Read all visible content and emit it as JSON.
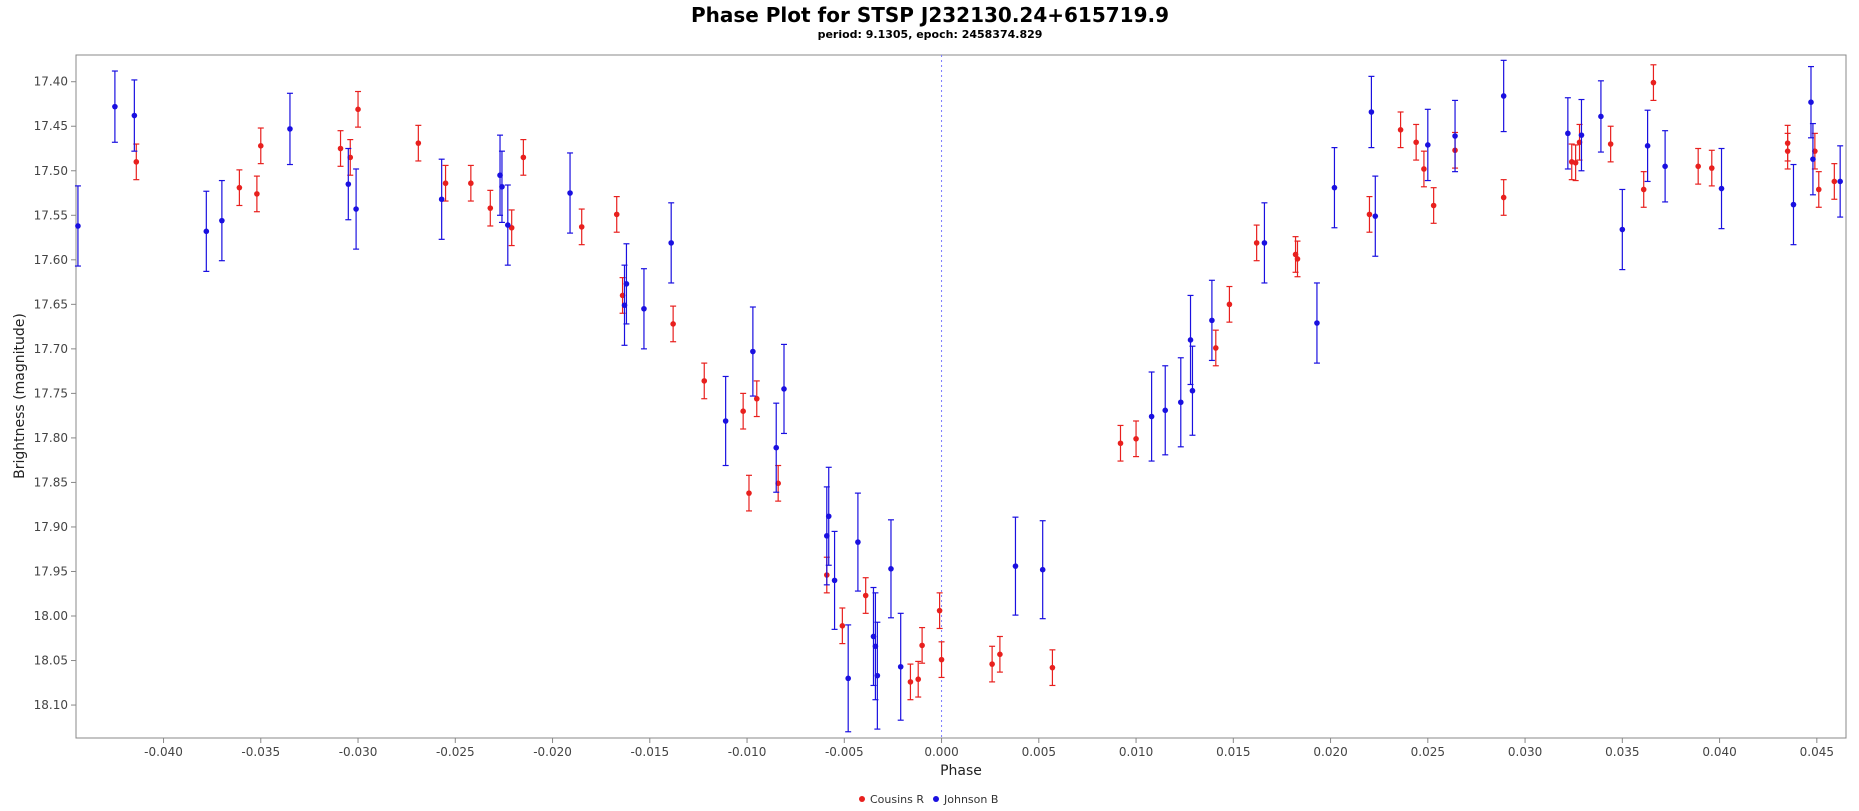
{
  "chart_data": {
    "type": "scatter",
    "title": "Phase Plot for STSP J232130.24+615719.9",
    "subtitle": "period: 9.1305, epoch: 2458374.829",
    "xlabel": "Phase",
    "ylabel": "Brightness (magnitude)",
    "xlim": [
      -0.0445,
      0.0465
    ],
    "ylim": [
      18.137,
      17.37
    ],
    "y_inverted": true,
    "grid": false,
    "legend_position": "bottom-center",
    "zero_line": {
      "x": 0.0,
      "style": "dashed"
    },
    "x_ticks": [
      -0.04,
      -0.035,
      -0.03,
      -0.025,
      -0.02,
      -0.015,
      -0.01,
      -0.005,
      0.0,
      0.005,
      0.01,
      0.015,
      0.02,
      0.025,
      0.03,
      0.035,
      0.04,
      0.045
    ],
    "x_tick_labels": [
      "-0.040",
      "-0.035",
      "-0.030",
      "-0.025",
      "-0.020",
      "-0.015",
      "-0.010",
      "-0.005",
      "0.000",
      "0.005",
      "0.010",
      "0.015",
      "0.020",
      "0.025",
      "0.030",
      "0.035",
      "0.040",
      "0.045"
    ],
    "y_ticks": [
      17.4,
      17.45,
      17.5,
      17.55,
      17.6,
      17.65,
      17.7,
      17.75,
      17.8,
      17.85,
      17.9,
      17.95,
      18.0,
      18.05,
      18.1
    ],
    "y_tick_labels": [
      "17.40",
      "17.45",
      "17.50",
      "17.55",
      "17.60",
      "17.65",
      "17.70",
      "17.75",
      "17.80",
      "17.85",
      "17.90",
      "17.95",
      "18.00",
      "18.05",
      "18.10"
    ],
    "series": [
      {
        "name": "Cousins R",
        "color": "#e8201e",
        "points": [
          [
            -0.0414,
            17.49,
            0.02
          ],
          [
            -0.0361,
            17.519,
            0.02
          ],
          [
            -0.0352,
            17.526,
            0.02
          ],
          [
            -0.035,
            17.472,
            0.02
          ],
          [
            -0.0309,
            17.475,
            0.02
          ],
          [
            -0.0304,
            17.485,
            0.02
          ],
          [
            -0.03,
            17.431,
            0.02
          ],
          [
            -0.0269,
            17.469,
            0.02
          ],
          [
            -0.0255,
            17.514,
            0.02
          ],
          [
            -0.0242,
            17.514,
            0.02
          ],
          [
            -0.0232,
            17.542,
            0.02
          ],
          [
            -0.0221,
            17.564,
            0.02
          ],
          [
            -0.0215,
            17.485,
            0.02
          ],
          [
            -0.0185,
            17.563,
            0.02
          ],
          [
            -0.0167,
            17.549,
            0.02
          ],
          [
            -0.0164,
            17.64,
            0.02
          ],
          [
            -0.0138,
            17.672,
            0.02
          ],
          [
            -0.0122,
            17.736,
            0.02
          ],
          [
            -0.0102,
            17.77,
            0.02
          ],
          [
            -0.0099,
            17.862,
            0.02
          ],
          [
            -0.0095,
            17.756,
            0.02
          ],
          [
            -0.0084,
            17.851,
            0.02
          ],
          [
            -0.0059,
            17.954,
            0.02
          ],
          [
            -0.0051,
            18.011,
            0.02
          ],
          [
            -0.0039,
            17.977,
            0.02
          ],
          [
            -0.0016,
            18.074,
            0.02
          ],
          [
            -0.0012,
            18.071,
            0.02
          ],
          [
            -0.001,
            18.033,
            0.02
          ],
          [
            -0.0001,
            17.994,
            0.02
          ],
          [
            0.0,
            18.049,
            0.02
          ],
          [
            0.0026,
            18.054,
            0.02
          ],
          [
            0.003,
            18.043,
            0.02
          ],
          [
            0.0057,
            18.058,
            0.02
          ],
          [
            0.0092,
            17.806,
            0.02
          ],
          [
            0.01,
            17.801,
            0.02
          ],
          [
            0.0141,
            17.699,
            0.02
          ],
          [
            0.0148,
            17.65,
            0.02
          ],
          [
            0.0162,
            17.581,
            0.02
          ],
          [
            0.0182,
            17.594,
            0.02
          ],
          [
            0.0183,
            17.599,
            0.02
          ],
          [
            0.022,
            17.549,
            0.02
          ],
          [
            0.0236,
            17.454,
            0.02
          ],
          [
            0.0244,
            17.468,
            0.02
          ],
          [
            0.0248,
            17.498,
            0.02
          ],
          [
            0.0253,
            17.539,
            0.02
          ],
          [
            0.0264,
            17.477,
            0.02
          ],
          [
            0.0289,
            17.53,
            0.02
          ],
          [
            0.0324,
            17.49,
            0.02
          ],
          [
            0.0326,
            17.491,
            0.02
          ],
          [
            0.0328,
            17.468,
            0.02
          ],
          [
            0.0344,
            17.47,
            0.02
          ],
          [
            0.0361,
            17.521,
            0.02
          ],
          [
            0.0366,
            17.401,
            0.02
          ],
          [
            0.0389,
            17.495,
            0.02
          ],
          [
            0.0396,
            17.497,
            0.02
          ],
          [
            0.0435,
            17.469,
            0.02
          ],
          [
            0.0435,
            17.478,
            0.02
          ],
          [
            0.0449,
            17.478,
            0.02
          ],
          [
            0.0451,
            17.521,
            0.02
          ],
          [
            0.0459,
            17.512,
            0.02
          ]
        ]
      },
      {
        "name": "Johnson B",
        "color": "#1a10e0",
        "points": [
          [
            -0.0444,
            17.562,
            0.045
          ],
          [
            -0.0425,
            17.428,
            0.04
          ],
          [
            -0.0415,
            17.438,
            0.04
          ],
          [
            -0.0378,
            17.568,
            0.045
          ],
          [
            -0.037,
            17.556,
            0.045
          ],
          [
            -0.0335,
            17.453,
            0.04
          ],
          [
            -0.0305,
            17.515,
            0.04
          ],
          [
            -0.0301,
            17.543,
            0.045
          ],
          [
            -0.0257,
            17.532,
            0.045
          ],
          [
            -0.0227,
            17.505,
            0.045
          ],
          [
            -0.0226,
            17.518,
            0.04
          ],
          [
            -0.0223,
            17.561,
            0.045
          ],
          [
            -0.0191,
            17.525,
            0.045
          ],
          [
            -0.0163,
            17.651,
            0.045
          ],
          [
            -0.0162,
            17.627,
            0.045
          ],
          [
            -0.0153,
            17.655,
            0.045
          ],
          [
            -0.0139,
            17.581,
            0.045
          ],
          [
            -0.0111,
            17.781,
            0.05
          ],
          [
            -0.0097,
            17.703,
            0.05
          ],
          [
            -0.0085,
            17.811,
            0.05
          ],
          [
            -0.0081,
            17.745,
            0.05
          ],
          [
            -0.0059,
            17.91,
            0.055
          ],
          [
            -0.0058,
            17.888,
            0.055
          ],
          [
            -0.0055,
            17.96,
            0.055
          ],
          [
            -0.0048,
            18.07,
            0.06
          ],
          [
            -0.0043,
            17.917,
            0.055
          ],
          [
            -0.0035,
            18.023,
            0.055
          ],
          [
            -0.0034,
            18.034,
            0.06
          ],
          [
            -0.0033,
            18.067,
            0.06
          ],
          [
            -0.0026,
            17.947,
            0.055
          ],
          [
            -0.0021,
            18.057,
            0.06
          ],
          [
            0.0038,
            17.944,
            0.055
          ],
          [
            0.0052,
            17.948,
            0.055
          ],
          [
            0.0108,
            17.776,
            0.05
          ],
          [
            0.0115,
            17.769,
            0.05
          ],
          [
            0.0123,
            17.76,
            0.05
          ],
          [
            0.0128,
            17.69,
            0.05
          ],
          [
            0.0129,
            17.747,
            0.05
          ],
          [
            0.0139,
            17.668,
            0.045
          ],
          [
            0.0166,
            17.581,
            0.045
          ],
          [
            0.0193,
            17.671,
            0.045
          ],
          [
            0.0202,
            17.519,
            0.045
          ],
          [
            0.0221,
            17.434,
            0.04
          ],
          [
            0.0223,
            17.551,
            0.045
          ],
          [
            0.025,
            17.471,
            0.04
          ],
          [
            0.0264,
            17.461,
            0.04
          ],
          [
            0.0289,
            17.416,
            0.04
          ],
          [
            0.0322,
            17.458,
            0.04
          ],
          [
            0.0329,
            17.46,
            0.04
          ],
          [
            0.0339,
            17.439,
            0.04
          ],
          [
            0.035,
            17.566,
            0.045
          ],
          [
            0.0363,
            17.472,
            0.04
          ],
          [
            0.0372,
            17.495,
            0.04
          ],
          [
            0.0401,
            17.52,
            0.045
          ],
          [
            0.0438,
            17.538,
            0.045
          ],
          [
            0.0447,
            17.423,
            0.04
          ],
          [
            0.0448,
            17.487,
            0.04
          ],
          [
            0.0462,
            17.512,
            0.04
          ]
        ]
      }
    ]
  }
}
